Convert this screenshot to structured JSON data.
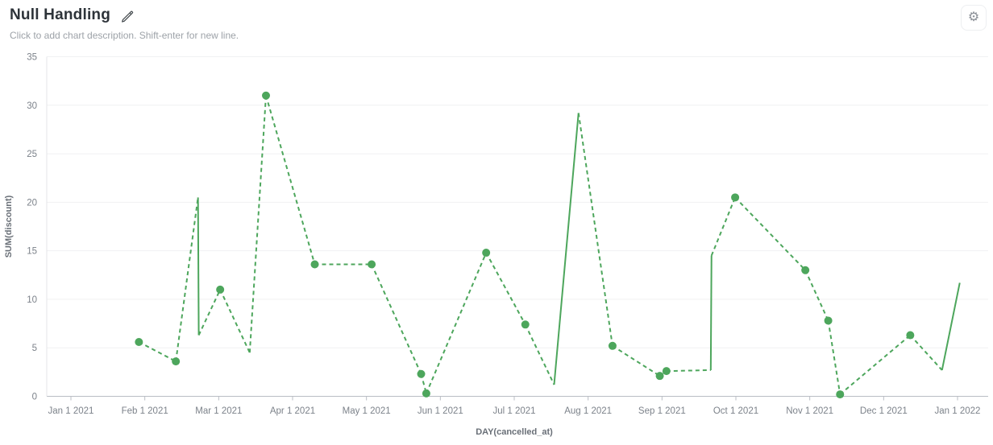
{
  "header": {
    "title": "Null Handling",
    "description_placeholder": "Click to add chart description. Shift-enter for new line."
  },
  "colors": {
    "line": "#4da65c",
    "grid": "#f0f1f2",
    "axis_line": "#b9bdc4",
    "y_axis_line": "#e4e6e9",
    "tick_text": "#7c828a",
    "axis_title_text": "#696f77",
    "title_text": "#2d3339",
    "subtitle_text": "#9da2a8",
    "icon_gray": "#8a8f96"
  },
  "icons": {
    "edit": "pencil-icon",
    "settings": "gear-icon"
  },
  "chart_data": {
    "type": "line",
    "title": "Null Handling",
    "xlabel": "DAY(cancelled_at)",
    "ylabel": "SUM(discount)",
    "ylim": [
      0,
      35
    ],
    "y_ticks": [
      0,
      5,
      10,
      15,
      20,
      25,
      30,
      35
    ],
    "x_ticks": [
      "Jan 1 2021",
      "Feb 1 2021",
      "Mar 1 2021",
      "Apr 1 2021",
      "May 1 2021",
      "Jun 1 2021",
      "Jul 1 2021",
      "Aug 1 2021",
      "Sep 1 2021",
      "Oct 1 2021",
      "Nov 1 2021",
      "Dec 1 2021",
      "Jan 1 2022"
    ],
    "x_range_months": [
      0,
      12
    ],
    "grid": true,
    "legend": false,
    "series": [
      {
        "name": "SUM(discount)",
        "note": "x is months after Jan 1 2021; marker=false points are line vertices without dots; to_next is the stroke style toward the following point",
        "points": [
          {
            "x": 0.92,
            "y": 5.6,
            "marker": true,
            "to_next": "dashed"
          },
          {
            "x": 1.42,
            "y": 3.6,
            "marker": true,
            "to_next": "dashed"
          },
          {
            "x": 1.72,
            "y": 20.5,
            "marker": false,
            "to_next": "solid"
          },
          {
            "x": 1.73,
            "y": 6.3,
            "marker": false,
            "to_next": "dashed"
          },
          {
            "x": 2.02,
            "y": 11.0,
            "marker": true,
            "to_next": "dashed"
          },
          {
            "x": 2.42,
            "y": 4.5,
            "marker": false,
            "to_next": "dashed"
          },
          {
            "x": 2.64,
            "y": 31.0,
            "marker": true,
            "to_next": "dashed"
          },
          {
            "x": 3.3,
            "y": 13.6,
            "marker": true,
            "to_next": "dashed"
          },
          {
            "x": 4.07,
            "y": 13.6,
            "marker": true,
            "to_next": "dashed"
          },
          {
            "x": 4.74,
            "y": 2.3,
            "marker": true,
            "to_next": "dashed"
          },
          {
            "x": 4.81,
            "y": 0.3,
            "marker": true,
            "to_next": "dashed"
          },
          {
            "x": 5.62,
            "y": 14.8,
            "marker": true,
            "to_next": "dashed"
          },
          {
            "x": 6.15,
            "y": 7.4,
            "marker": true,
            "to_next": "dashed"
          },
          {
            "x": 6.54,
            "y": 1.2,
            "marker": false,
            "to_next": "solid"
          },
          {
            "x": 6.87,
            "y": 29.2,
            "marker": false,
            "to_next": "dashed"
          },
          {
            "x": 7.33,
            "y": 5.2,
            "marker": true,
            "to_next": "dashed"
          },
          {
            "x": 7.97,
            "y": 2.1,
            "marker": true,
            "to_next": "dashed"
          },
          {
            "x": 8.06,
            "y": 2.6,
            "marker": true,
            "to_next": "dashed"
          },
          {
            "x": 8.66,
            "y": 2.7,
            "marker": false,
            "to_next": "solid"
          },
          {
            "x": 8.67,
            "y": 14.5,
            "marker": false,
            "to_next": "dashed"
          },
          {
            "x": 8.99,
            "y": 20.5,
            "marker": true,
            "to_next": "dashed"
          },
          {
            "x": 9.94,
            "y": 13.0,
            "marker": true,
            "to_next": "dashed"
          },
          {
            "x": 10.25,
            "y": 7.8,
            "marker": true,
            "to_next": "dashed"
          },
          {
            "x": 10.41,
            "y": 0.2,
            "marker": true,
            "to_next": "dashed"
          },
          {
            "x": 11.36,
            "y": 6.3,
            "marker": true,
            "to_next": "dashed"
          },
          {
            "x": 11.79,
            "y": 2.7,
            "marker": false,
            "to_next": "solid"
          },
          {
            "x": 12.03,
            "y": 11.7,
            "marker": false,
            "to_next": null
          }
        ]
      }
    ]
  }
}
